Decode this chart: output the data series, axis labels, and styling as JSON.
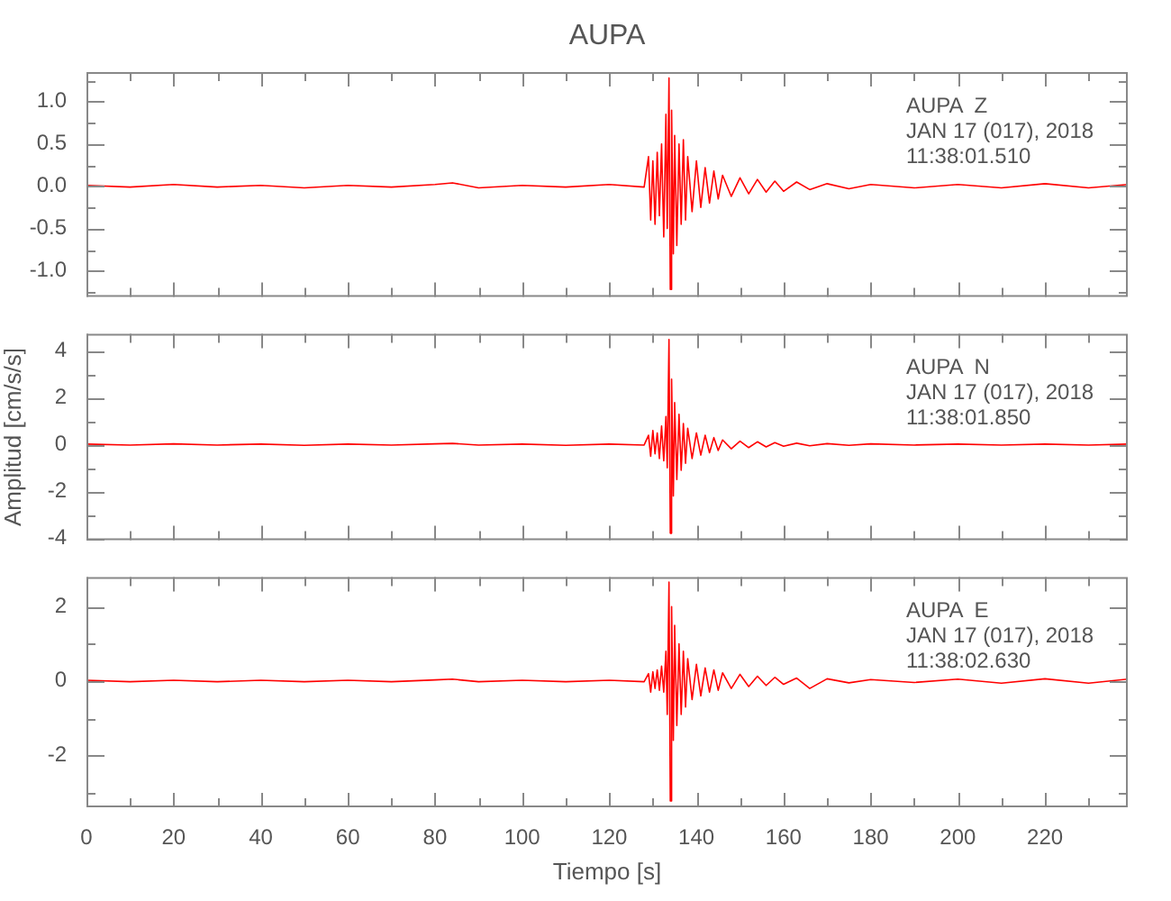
{
  "chart_data": [
    {
      "type": "line",
      "title": "AUPA",
      "annotations": [
        "AUPA  Z",
        "JAN 17 (017), 2018",
        "11:38:01.510"
      ],
      "tick_labels": "y",
      "x": [
        0,
        10,
        20,
        30,
        40,
        50,
        60,
        70,
        80,
        84,
        90,
        100,
        110,
        120,
        128,
        129.0,
        129.5,
        130,
        130.5,
        131,
        131.5,
        132,
        132.5,
        133,
        133.3,
        133.7,
        134.0,
        134.3,
        134.7,
        135,
        135.5,
        136,
        136.5,
        137,
        137.5,
        138,
        139,
        140,
        141,
        142,
        143,
        144,
        145,
        146,
        148,
        150,
        152,
        154,
        156,
        158,
        160,
        163,
        166,
        170,
        175,
        180,
        190,
        200,
        210,
        220,
        230,
        239
      ],
      "series": [
        {
          "color": "#ff0000",
          "values": [
            0.01,
            -0.01,
            0.02,
            -0.01,
            0.01,
            -0.02,
            0.01,
            -0.01,
            0.02,
            0.04,
            -0.02,
            0.01,
            -0.01,
            0.02,
            -0.01,
            0.35,
            -0.4,
            0.3,
            -0.45,
            0.4,
            -0.35,
            0.5,
            -0.6,
            0.85,
            -0.5,
            1.28,
            -1.22,
            0.9,
            -0.8,
            0.6,
            -0.7,
            0.5,
            -0.45,
            0.55,
            -0.4,
            0.35,
            -0.3,
            0.3,
            -0.25,
            0.22,
            -0.2,
            0.18,
            -0.15,
            0.13,
            -0.12,
            0.1,
            -0.09,
            0.08,
            -0.07,
            0.06,
            -0.06,
            0.05,
            -0.04,
            0.03,
            -0.03,
            0.02,
            -0.02,
            0.02,
            -0.02,
            0.03,
            -0.02,
            0.02
          ]
        }
      ],
      "xlim": [
        0,
        239
      ],
      "xticks": [
        0,
        {
          "value": 10,
          "label": null
        },
        20,
        {
          "value": 30,
          "label": null
        },
        40,
        {
          "value": 50,
          "label": null
        },
        60,
        {
          "value": 70,
          "label": null
        },
        80,
        {
          "value": 90,
          "label": null
        },
        100,
        {
          "value": 110,
          "label": null
        },
        120,
        {
          "value": 130,
          "label": null
        },
        140,
        {
          "value": 150,
          "label": null
        },
        160,
        {
          "value": 170,
          "label": null
        },
        180,
        {
          "value": 190,
          "label": null
        },
        200,
        {
          "value": 210,
          "label": null
        },
        220,
        {
          "value": 230,
          "label": null
        }
      ],
      "ylim": [
        -1.31,
        1.35
      ],
      "yticks": [
        {
          "value": -1.25,
          "label": null
        },
        {
          "value": -1,
          "label": "-1.0"
        },
        {
          "value": -0.75,
          "label": null
        },
        {
          "value": -0.5,
          "label": "-0.5"
        },
        {
          "value": -0.25,
          "label": null
        },
        {
          "value": 0,
          "label": "0.0"
        },
        {
          "value": 0.25,
          "label": null
        },
        {
          "value": 0.5,
          "label": "0.5"
        },
        {
          "value": 0.75,
          "label": null
        },
        {
          "value": 1,
          "label": "1.0"
        },
        {
          "value": 1.25,
          "label": null
        }
      ]
    },
    {
      "type": "line",
      "ylabel": "Amplitud [cm/s/s]",
      "annotations": [
        "AUPA  N",
        "JAN 17 (017), 2018",
        "11:38:01.850"
      ],
      "tick_labels": "y",
      "x": [
        0,
        10,
        20,
        30,
        40,
        50,
        60,
        70,
        80,
        84,
        90,
        100,
        110,
        120,
        128,
        129.0,
        129.5,
        130,
        130.5,
        131,
        131.5,
        132,
        132.5,
        133,
        133.3,
        133.7,
        134.0,
        134.3,
        134.7,
        135,
        135.5,
        136,
        136.5,
        137,
        137.5,
        138,
        139,
        140,
        141,
        142,
        143,
        144,
        145,
        146,
        148,
        150,
        152,
        154,
        156,
        158,
        160,
        163,
        166,
        170,
        175,
        180,
        190,
        200,
        210,
        220,
        230,
        239
      ],
      "series": [
        {
          "color": "#ff0000",
          "values": [
            0.02,
            -0.02,
            0.03,
            -0.02,
            0.02,
            -0.03,
            0.02,
            -0.02,
            0.03,
            0.05,
            -0.02,
            0.02,
            -0.03,
            0.02,
            -0.02,
            0.4,
            -0.5,
            0.6,
            -0.4,
            0.5,
            -0.6,
            0.8,
            -0.7,
            1.2,
            -1.0,
            4.5,
            -3.8,
            2.8,
            -2.2,
            1.8,
            -1.5,
            1.3,
            -1.1,
            0.9,
            -0.8,
            0.7,
            -0.6,
            0.5,
            -0.45,
            0.4,
            -0.35,
            0.3,
            -0.25,
            0.2,
            -0.18,
            0.15,
            -0.13,
            0.12,
            -0.1,
            0.08,
            -0.07,
            0.06,
            -0.05,
            0.04,
            -0.03,
            0.03,
            -0.02,
            0.02,
            -0.02,
            0.02,
            -0.02,
            0.02
          ]
        }
      ],
      "xlim": [
        0,
        239
      ],
      "xticks": [
        0,
        {
          "value": 10,
          "label": null
        },
        20,
        {
          "value": 30,
          "label": null
        },
        40,
        {
          "value": 50,
          "label": null
        },
        60,
        {
          "value": 70,
          "label": null
        },
        80,
        {
          "value": 90,
          "label": null
        },
        100,
        {
          "value": 110,
          "label": null
        },
        120,
        {
          "value": 130,
          "label": null
        },
        140,
        {
          "value": 150,
          "label": null
        },
        160,
        {
          "value": 170,
          "label": null
        },
        180,
        {
          "value": 190,
          "label": null
        },
        200,
        {
          "value": 210,
          "label": null
        },
        220,
        {
          "value": 230,
          "label": null
        }
      ],
      "ylim": [
        -4.1,
        4.75
      ],
      "yticks": [
        -4,
        {
          "value": -3,
          "label": null
        },
        -2,
        {
          "value": -1,
          "label": null
        },
        0,
        {
          "value": 1,
          "label": null
        },
        2,
        {
          "value": 3,
          "label": null
        },
        4
      ]
    },
    {
      "type": "line",
      "xlabel": "Tiempo [s]",
      "annotations": [
        "AUPA  E",
        "JAN 17 (017), 2018",
        "11:38:02.630"
      ],
      "x": [
        0,
        10,
        20,
        30,
        40,
        50,
        60,
        70,
        80,
        84,
        90,
        100,
        110,
        120,
        128,
        129.0,
        129.5,
        130,
        130.5,
        131,
        131.5,
        132,
        132.5,
        133,
        133.3,
        133.7,
        134.0,
        134.3,
        134.7,
        135,
        135.5,
        136,
        136.5,
        137,
        137.5,
        138,
        139,
        140,
        141,
        142,
        143,
        144,
        145,
        146,
        148,
        150,
        152,
        154,
        156,
        158,
        160,
        163,
        166,
        170,
        175,
        180,
        190,
        200,
        210,
        220,
        230,
        239
      ],
      "series": [
        {
          "color": "#ff0000",
          "values": [
            0.02,
            -0.02,
            0.02,
            -0.02,
            0.02,
            -0.02,
            0.02,
            -0.02,
            0.03,
            0.05,
            -0.02,
            0.02,
            -0.02,
            0.02,
            -0.02,
            0.2,
            -0.3,
            0.25,
            -0.2,
            0.3,
            -0.25,
            0.4,
            -0.3,
            0.8,
            -0.9,
            2.66,
            -3.23,
            2.0,
            -1.6,
            1.5,
            -1.2,
            1.0,
            -0.9,
            0.8,
            -0.7,
            0.6,
            -0.5,
            0.45,
            -0.4,
            0.35,
            -0.3,
            0.3,
            -0.25,
            0.22,
            -0.2,
            0.18,
            -0.15,
            0.13,
            -0.12,
            0.1,
            -0.09,
            0.08,
            -0.2,
            0.06,
            -0.05,
            0.04,
            -0.04,
            0.05,
            -0.06,
            0.06,
            -0.06,
            0.05
          ]
        }
      ],
      "xlim": [
        0,
        239
      ],
      "xticks": [
        0,
        {
          "value": 10,
          "label": null
        },
        20,
        {
          "value": 30,
          "label": null
        },
        40,
        {
          "value": 50,
          "label": null
        },
        60,
        {
          "value": 70,
          "label": null
        },
        80,
        {
          "value": 90,
          "label": null
        },
        100,
        {
          "value": 110,
          "label": null
        },
        120,
        {
          "value": 130,
          "label": null
        },
        140,
        {
          "value": 150,
          "label": null
        },
        160,
        {
          "value": 170,
          "label": null
        },
        180,
        {
          "value": 190,
          "label": null
        },
        200,
        {
          "value": 210,
          "label": null
        },
        220,
        {
          "value": 230,
          "label": null
        }
      ],
      "ylim": [
        -3.4,
        2.8
      ],
      "yticks": [
        {
          "value": -3,
          "label": null
        },
        -2,
        {
          "value": -1,
          "label": null
        },
        0,
        {
          "value": 1,
          "label": null
        },
        2
      ]
    }
  ]
}
